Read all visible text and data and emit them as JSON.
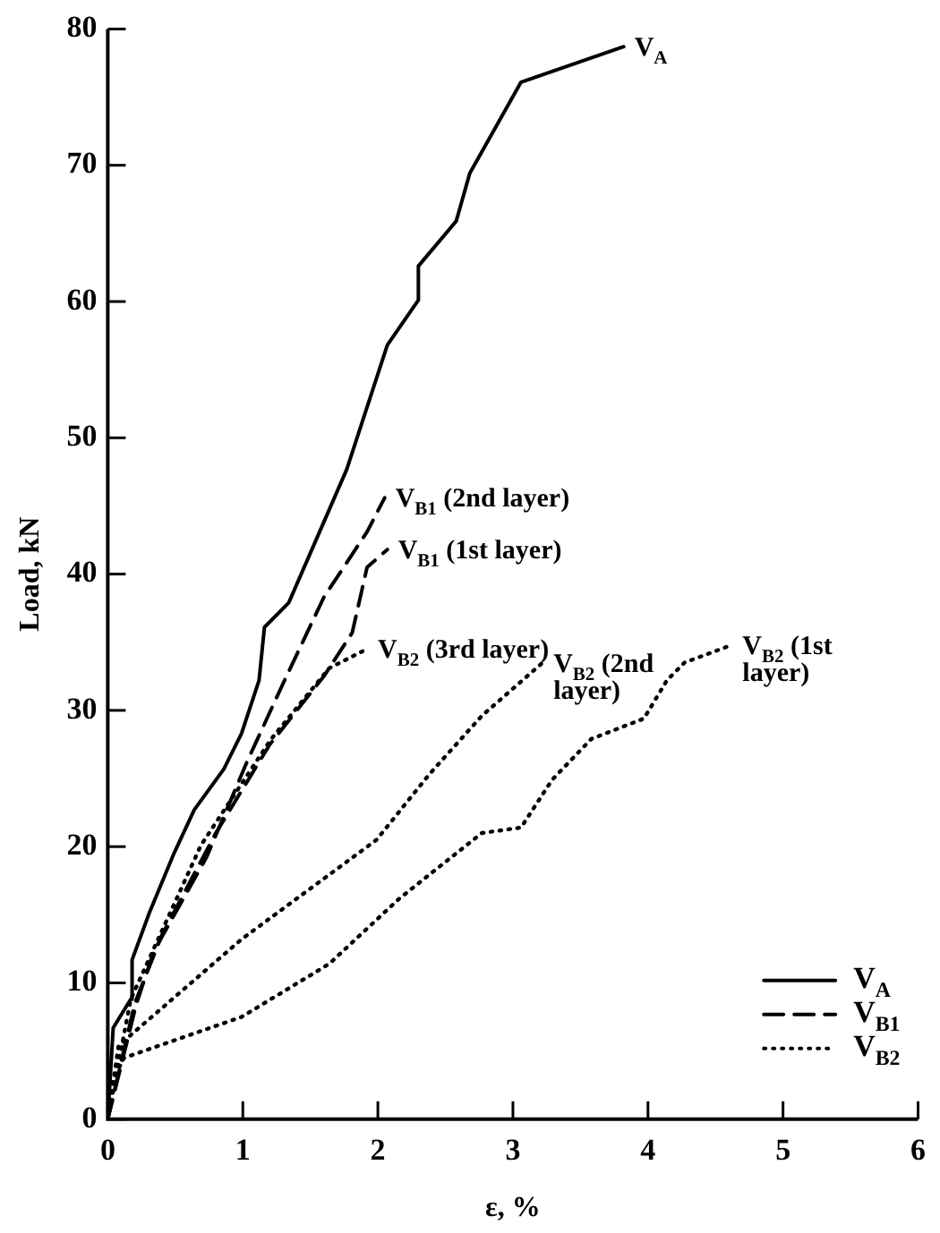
{
  "chart_data": {
    "type": "line",
    "xlabel": "ε, %",
    "ylabel": "Load, kN",
    "xlim": [
      0,
      6
    ],
    "ylim": [
      0,
      80
    ],
    "xticks": [
      0,
      1,
      2,
      3,
      4,
      5,
      6
    ],
    "yticks": [
      0,
      10,
      20,
      30,
      40,
      50,
      60,
      70,
      80
    ],
    "grid": false,
    "legend": "bottom right",
    "marker": "none",
    "series": [
      {
        "name": "V$_{A}$",
        "color": "#000000",
        "line_style": "solid",
        "x": [
          0,
          0.04,
          0.17,
          0.18,
          0.31,
          0.49,
          0.64,
          0.86,
          0.99,
          1.12,
          1.16,
          1.34,
          1.77,
          2.07,
          2.3,
          2.3,
          2.58,
          2.68,
          3.06,
          3.82
        ],
        "values": [
          0,
          6.7,
          8.8,
          11.7,
          15.2,
          19.5,
          22.7,
          25.7,
          28.3,
          32.2,
          36.1,
          37.9,
          47.7,
          56.8,
          60.1,
          62.6,
          65.9,
          69.4,
          76.1,
          78.7
        ]
      },
      {
        "name": "V$_{B1}$",
        "color": "#000000",
        "line_style": "dashed",
        "x": [
          0,
          0.21,
          0.34,
          0.73,
          1.03,
          1.29,
          1.6,
          1.92,
          2.05
        ],
        "values": [
          0,
          8.4,
          12.3,
          19.2,
          26.2,
          31.8,
          38.3,
          43.1,
          45.6
        ]
      },
      {
        "color": "#000000",
        "line_style": "dashed",
        "x": [
          0,
          0.2,
          0.4,
          0.8,
          1.2,
          1.6,
          1.81,
          1.92,
          2.07
        ],
        "values": [
          0,
          8.5,
          13.5,
          21,
          27.5,
          32.5,
          35.7,
          40.5,
          41.8
        ]
      },
      {
        "name": "V$_{B2}$",
        "color": "#000000",
        "line_style": "dotted",
        "x": [
          0,
          0.17,
          0.69,
          1.21,
          1.64,
          1.92
        ],
        "values": [
          0,
          8.8,
          20.1,
          27.9,
          33.1,
          34.5
        ]
      },
      {
        "color": "#000000",
        "line_style": "dotted",
        "x": [
          0,
          0.08,
          0.99,
          1.99,
          2.38,
          2.77,
          3.22
        ],
        "values": [
          0,
          5.4,
          13.2,
          20.5,
          25.3,
          29.6,
          33.5
        ]
      },
      {
        "color": "#000000",
        "line_style": "dotted",
        "x": [
          0,
          0.04,
          0.12,
          0.99,
          1.64,
          2.16,
          2.77,
          3.06,
          3.29,
          3.58,
          3.97,
          4.14,
          4.27,
          4.62
        ],
        "values": [
          0,
          2.9,
          4.5,
          7.5,
          11.4,
          16.2,
          21,
          21.4,
          24.9,
          27.9,
          29.4,
          32.2,
          33.5,
          34.8
        ]
      }
    ],
    "annotations": [
      {
        "text": "V$_{A}$",
        "x": 3.82,
        "y": 78.7
      },
      {
        "text": "V$_{B1}$ (2nd layer)",
        "x": 2.05,
        "y": 45.6
      },
      {
        "text": "V$_{B1}$ (1st layer)",
        "x": 2.07,
        "y": 41.8
      },
      {
        "text": "V$_{B2}$ (3rd layer)",
        "x": 1.92,
        "y": 34.5
      },
      {
        "text": "V$_{B2}$ (2nd layer)",
        "x": 3.22,
        "y": 33.5
      },
      {
        "text": "V$_{B2}$ (1st layer)",
        "x": 4.62,
        "y": 34.8
      }
    ]
  }
}
